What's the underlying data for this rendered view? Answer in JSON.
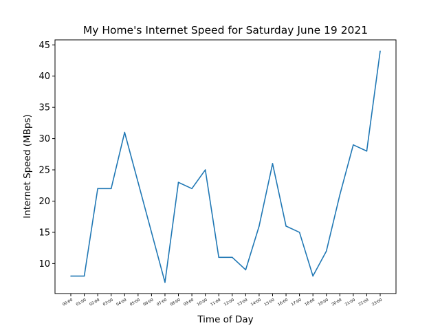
{
  "chart_data": {
    "type": "line",
    "title": "My Home's Internet Speed for Saturday June 19 2021",
    "xlabel": "Time of Day",
    "ylabel": "Internet Speed (MBps)",
    "categories": [
      "00:00",
      "01:00",
      "02:00",
      "03:00",
      "04:00",
      "05:00",
      "06:00",
      "07:00",
      "08:00",
      "09:00",
      "10:00",
      "11:00",
      "12:00",
      "13:00",
      "14:00",
      "15:00",
      "16:00",
      "17:00",
      "18:00",
      "19:00",
      "20:00",
      "21:00",
      "22:00",
      "23:00"
    ],
    "series": [
      {
        "values": [
          8,
          8,
          22,
          22,
          31,
          23,
          15,
          7,
          23,
          22,
          25,
          11,
          11,
          9,
          16,
          26,
          16,
          15,
          8,
          12,
          21,
          29,
          28,
          44
        ]
      }
    ],
    "yticks": [
      10,
      15,
      20,
      25,
      30,
      35,
      40,
      45
    ],
    "ylim": [
      5.2,
      45.8
    ],
    "grid": false,
    "legend": false,
    "colors": {
      "line": "#1f77b4",
      "axes": "#000000"
    }
  }
}
